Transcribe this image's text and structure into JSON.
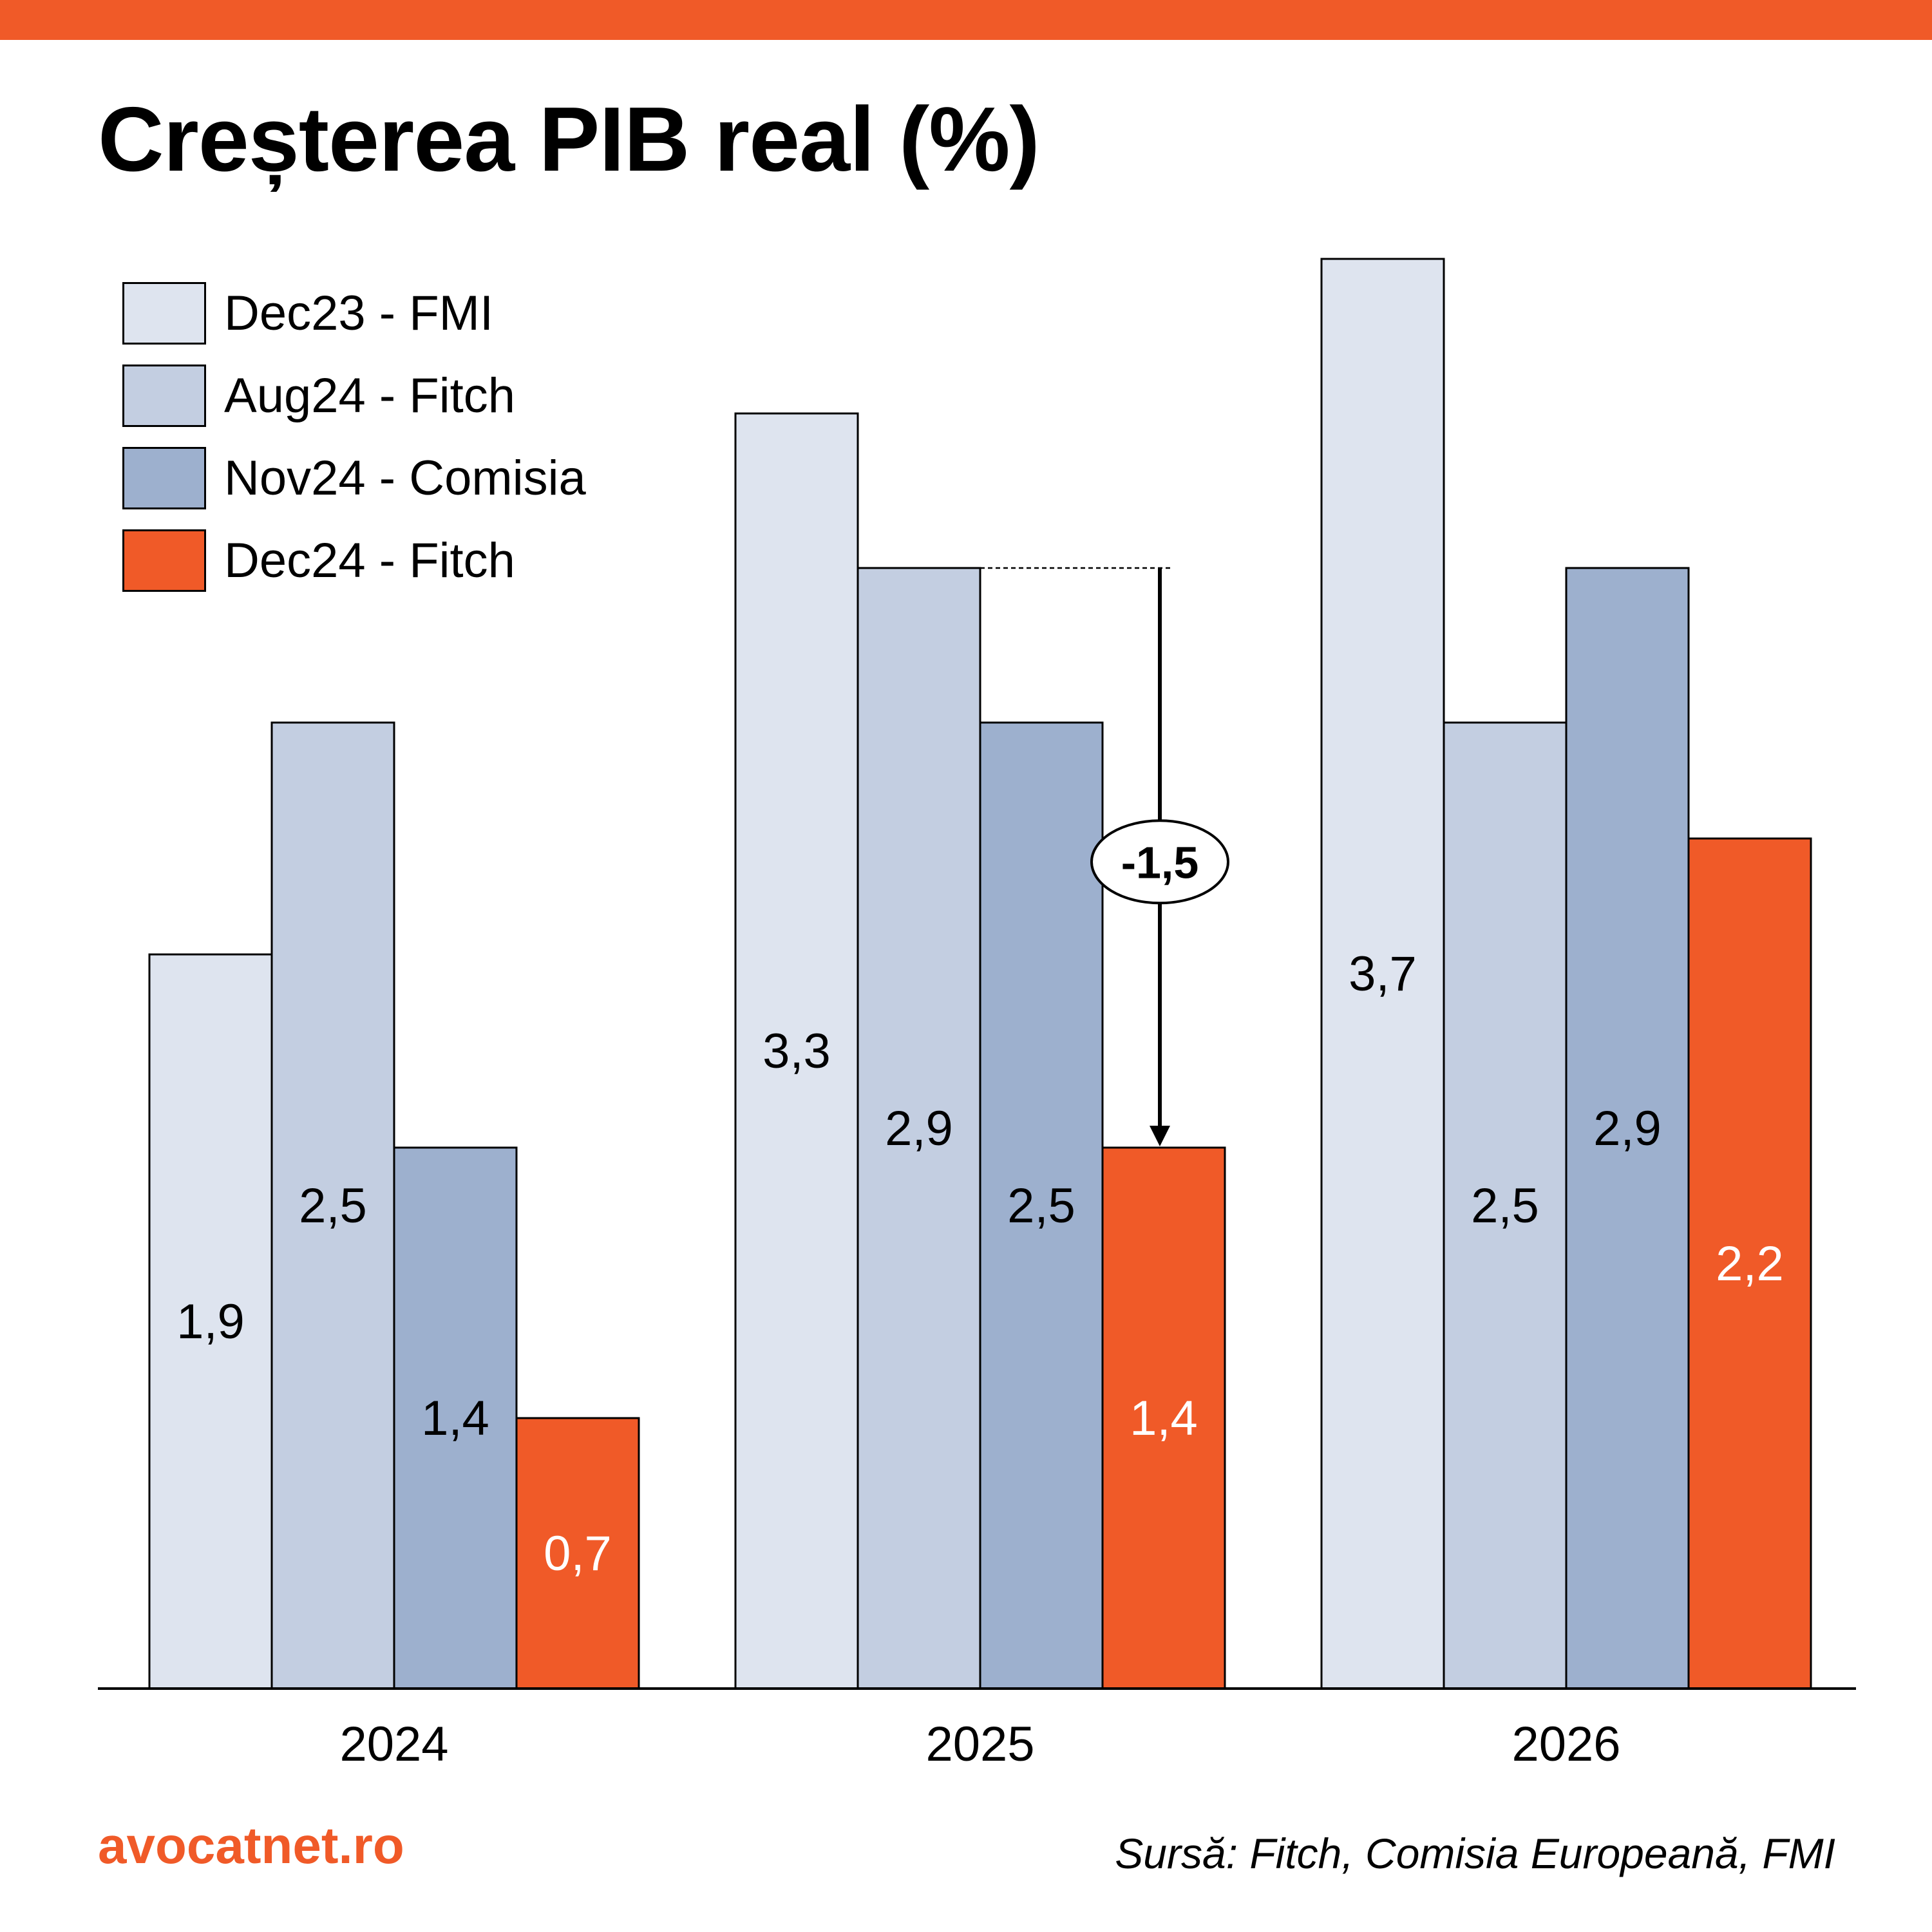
{
  "header": {
    "title": "Creșterea PIB real (%)"
  },
  "footer": {
    "brand": "avocatnet.ro",
    "source": "Sursă: Fitch, Comisia Europeană, FMI"
  },
  "colors": {
    "accent": "#F05A28",
    "dec23_fmi": "#DEE4EF",
    "aug24_fitch": "#C3CEE1",
    "nov24_comisia": "#9DB0CE",
    "dec24_fitch": "#F05A28"
  },
  "chart_data": {
    "type": "bar",
    "title": "Creșterea PIB real (%)",
    "categories": [
      "2024",
      "2025",
      "2026"
    ],
    "series": [
      {
        "name": "Dec23 - FMI",
        "values": [
          1.9,
          3.3,
          3.7
        ],
        "labels": [
          "1,9",
          "3,3",
          "3,7"
        ],
        "color": "#DEE4EF",
        "label_color": "#000000"
      },
      {
        "name": "Aug24 - Fitch",
        "values": [
          2.5,
          2.9,
          2.5
        ],
        "labels": [
          "2,5",
          "2,9",
          "2,5"
        ],
        "color": "#C3CEE1",
        "label_color": "#000000"
      },
      {
        "name": "Nov24 - Comisia",
        "values": [
          1.4,
          2.5,
          2.9
        ],
        "labels": [
          "1,4",
          "2,5",
          "2,9"
        ],
        "color": "#9DB0CE",
        "label_color": "#000000"
      },
      {
        "name": "Dec24 - Fitch",
        "values": [
          0.7,
          1.4,
          2.2
        ],
        "labels": [
          "0,7",
          "1,4",
          "2,2"
        ],
        "color": "#F05A28",
        "label_color": "#ffffff"
      }
    ],
    "ylim": [
      0,
      3.7
    ],
    "grid": false,
    "legend_position": "top-left",
    "annotations": [
      {
        "text": "-1,5",
        "category": "2025",
        "from_series": "Aug24 - Fitch",
        "to_series": "Dec24 - Fitch",
        "from_value": 2.9,
        "to_value": 1.4
      }
    ]
  }
}
